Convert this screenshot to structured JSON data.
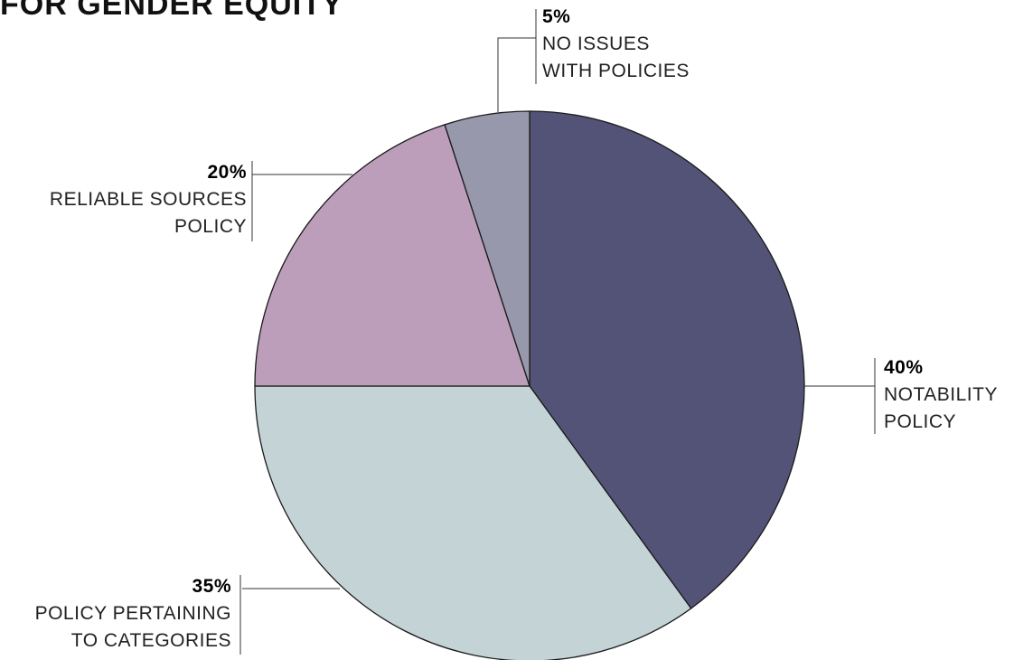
{
  "title": "FOR GENDER EQUITY",
  "chart_data": {
    "type": "pie",
    "title": "FOR GENDER EQUITY",
    "slices": [
      {
        "label": "NOTABILITY POLICY",
        "label_lines": [
          "NOTABILITY",
          "POLICY"
        ],
        "value": 40,
        "percent_label": "40%",
        "color": "#535277"
      },
      {
        "label": "POLICY PERTAINING TO CATEGORIES",
        "label_lines": [
          "POLICY PERTAINING",
          "TO CATEGORIES"
        ],
        "value": 35,
        "percent_label": "35%",
        "color": "#C4D3D6"
      },
      {
        "label": "RELIABLE SOURCES POLICY",
        "label_lines": [
          "RELIABLE SOURCES",
          "POLICY"
        ],
        "value": 20,
        "percent_label": "20%",
        "color": "#BC9EBA"
      },
      {
        "label": "NO ISSUES WITH POLICIES",
        "label_lines": [
          "NO ISSUES",
          "WITH POLICIES"
        ],
        "value": 5,
        "percent_label": "5%",
        "color": "#9898AD"
      }
    ],
    "start": "12 o'clock",
    "direction": "clockwise"
  }
}
